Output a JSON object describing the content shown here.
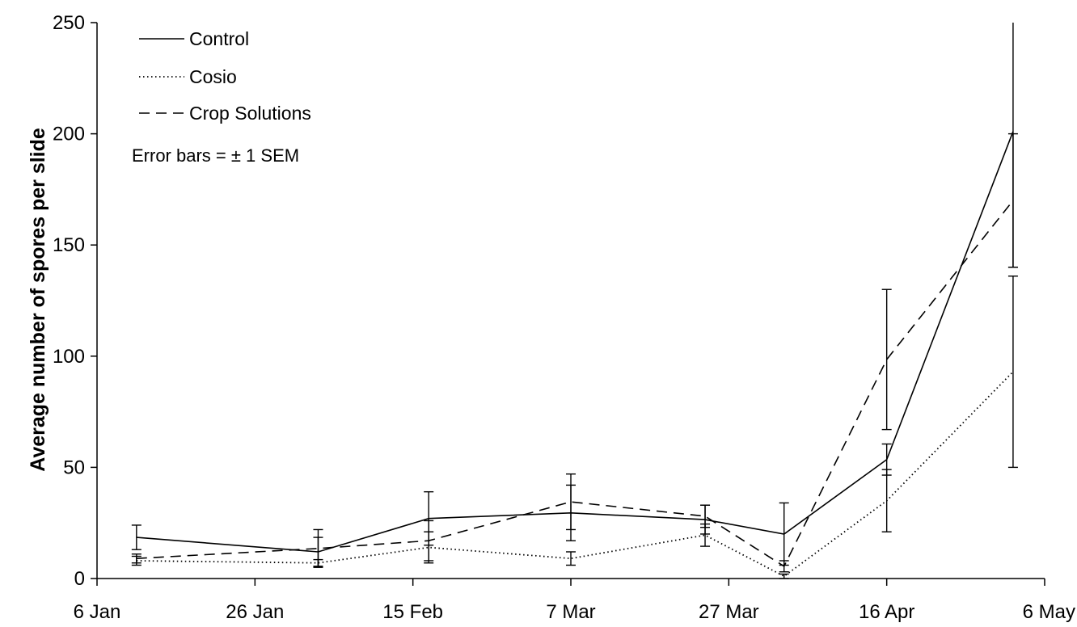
{
  "chart_data": {
    "type": "line",
    "ylabel": "Average number of spores per slide",
    "xlabel": "",
    "title": "",
    "ylim": [
      0,
      250
    ],
    "yticks": [
      0,
      50,
      100,
      150,
      200,
      250
    ],
    "xlim": [
      "2013-01-06",
      "2013-05-06"
    ],
    "xticks": [
      {
        "date": "2013-01-06",
        "label": "6 Jan"
      },
      {
        "date": "2013-01-26",
        "label": "26 Jan"
      },
      {
        "date": "2013-02-15",
        "label": "15 Feb"
      },
      {
        "date": "2013-03-07",
        "label": "7 Mar"
      },
      {
        "date": "2013-03-27",
        "label": "27 Mar"
      },
      {
        "date": "2013-04-16",
        "label": "16 Apr"
      },
      {
        "date": "2013-05-06",
        "label": "6 May"
      }
    ],
    "x": [
      "2013-01-11",
      "2013-02-03",
      "2013-02-17",
      "2013-03-07",
      "2013-03-24",
      "2013-04-03",
      "2013-04-16",
      "2013-05-02"
    ],
    "series": [
      {
        "name": "Control",
        "style": "solid",
        "values": [
          18.5,
          12,
          27,
          29.5,
          26.5,
          20,
          53.5,
          201
        ],
        "err": [
          5.5,
          6.5,
          12,
          12.5,
          6.5,
          14,
          7,
          61
        ]
      },
      {
        "name": "Cosio",
        "style": "dotted",
        "values": [
          8,
          7,
          14,
          9,
          19.5,
          1,
          35,
          93
        ],
        "err": [
          2,
          1.5,
          7,
          3,
          5,
          1,
          14,
          43
        ]
      },
      {
        "name": "Crop Solutions",
        "style": "dashed",
        "values": [
          9,
          13.5,
          17,
          34.5,
          28,
          5.5,
          98.5,
          170
        ],
        "err": [
          2,
          8.5,
          9,
          12.5,
          5,
          2.5,
          31.5,
          30
        ]
      }
    ],
    "legend_position": "top-left",
    "annotation": "Error bars = ± 1 SEM",
    "grid": false,
    "colors": {
      "lines": "#000000",
      "background": "#ffffff"
    }
  }
}
